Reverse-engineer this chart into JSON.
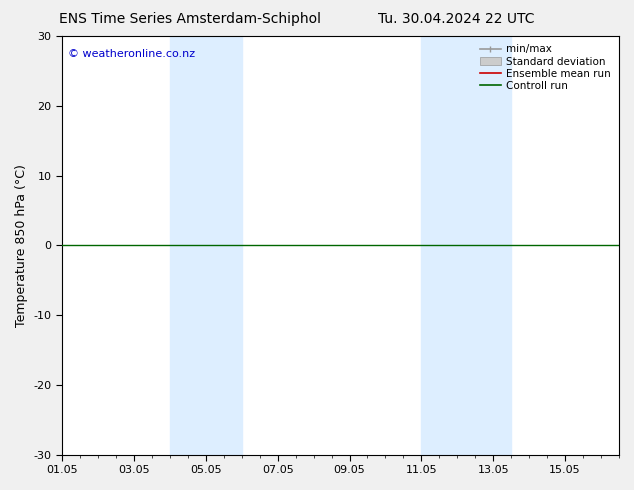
{
  "title_left": "ENS Time Series Amsterdam-Schiphol",
  "title_right": "Tu. 30.04.2024 22 UTC",
  "ylabel": "Temperature 850 hPa (°C)",
  "ylim": [
    -30,
    30
  ],
  "yticks": [
    -30,
    -20,
    -10,
    0,
    10,
    20,
    30
  ],
  "xtick_labels": [
    "01.05",
    "03.05",
    "05.05",
    "07.05",
    "09.05",
    "11.05",
    "13.05",
    "15.05"
  ],
  "xtick_positions": [
    0,
    2,
    4,
    6,
    8,
    10,
    12,
    14
  ],
  "xlim": [
    0,
    15.5
  ],
  "shaded_bands": [
    {
      "x_start": 3.0,
      "x_end": 5.0,
      "color": "#ddeeff"
    },
    {
      "x_start": 10.0,
      "x_end": 12.5,
      "color": "#ddeeff"
    }
  ],
  "control_run_y": 0,
  "control_run_color": "#006600",
  "ensemble_mean_color": "#cc0000",
  "background_color": "#ffffff",
  "fig_background_color": "#f0f0f0",
  "watermark_text": "© weatheronline.co.nz",
  "watermark_color": "#0000cc",
  "legend_items": [
    {
      "label": "min/max",
      "color": "#999999"
    },
    {
      "label": "Standard deviation",
      "color": "#cccccc"
    },
    {
      "label": "Ensemble mean run",
      "color": "#cc0000"
    },
    {
      "label": "Controll run",
      "color": "#006600"
    }
  ],
  "title_fontsize": 10,
  "axis_fontsize": 9,
  "tick_fontsize": 8,
  "watermark_fontsize": 8
}
